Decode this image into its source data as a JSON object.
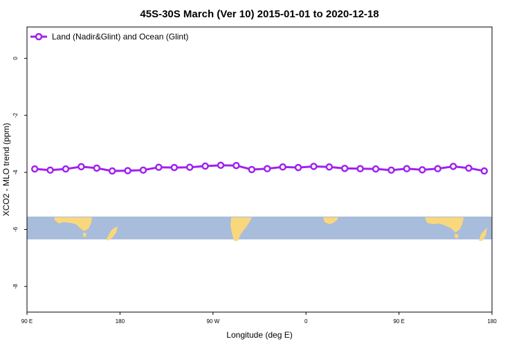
{
  "chart_data": {
    "type": "line",
    "title": "45S-30S March (Ver 10)   2015-01-01 to 2020-12-18",
    "xlabel": "Longitude (deg E)",
    "ylabel": "XCO2 - MLO trend (ppm)",
    "xlim": [
      90,
      450
    ],
    "ylim": [
      -8.9,
      1.1
    ],
    "x_ticks": [
      {
        "value": 90,
        "label": "90 E"
      },
      {
        "value": 162,
        "label": "180"
      },
      {
        "value": 234,
        "label": "90 W"
      },
      {
        "value": 306,
        "label": "0"
      },
      {
        "value": 378,
        "label": "90 E"
      },
      {
        "value": 450,
        "label": "180"
      }
    ],
    "y_ticks": [
      {
        "value": 0,
        "label": "0"
      },
      {
        "value": -2,
        "label": "-2"
      },
      {
        "value": -4,
        "label": "-4"
      },
      {
        "value": -6,
        "label": "-6"
      },
      {
        "value": -8,
        "label": "-8"
      }
    ],
    "legend_position": "top-left",
    "series": [
      {
        "name": "Land (Nadir&Glint) and Ocean (Glint)",
        "color": "#a020f0",
        "x": [
          96,
          108,
          120,
          132,
          144,
          156,
          168,
          180,
          192,
          204,
          216,
          228,
          240,
          252,
          264,
          276,
          288,
          300,
          312,
          324,
          336,
          348,
          360,
          372,
          384,
          396,
          408,
          420,
          432,
          444
        ],
        "y": [
          -3.88,
          -3.92,
          -3.88,
          -3.8,
          -3.85,
          -3.95,
          -3.94,
          -3.92,
          -3.82,
          -3.83,
          -3.82,
          -3.78,
          -3.75,
          -3.76,
          -3.9,
          -3.87,
          -3.81,
          -3.83,
          -3.79,
          -3.81,
          -3.86,
          -3.87,
          -3.88,
          -3.92,
          -3.87,
          -3.91,
          -3.87,
          -3.79,
          -3.85,
          -3.95
        ]
      }
    ],
    "background_map": {
      "ocean_color": "#a8bcdc",
      "land_color": "#f9d77c",
      "y_range": [
        -5.55,
        -6.35
      ]
    }
  }
}
